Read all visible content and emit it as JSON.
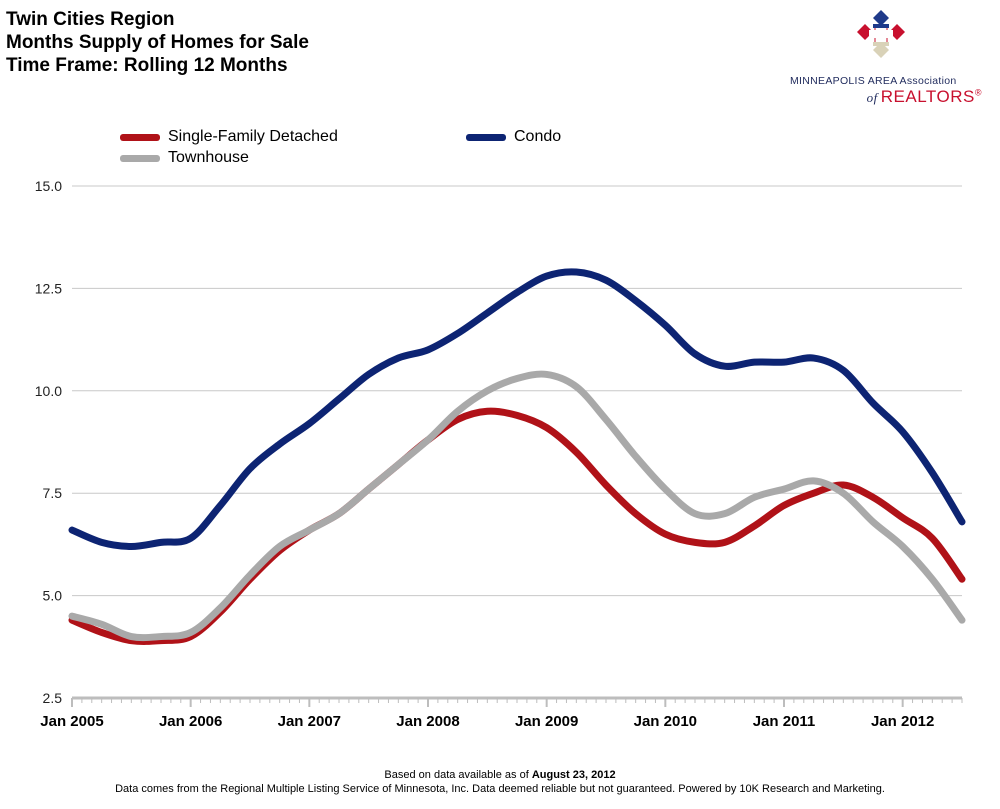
{
  "header": {
    "title_lines": [
      "Twin Cities Region",
      "Months Supply of Homes for Sale",
      "Time Frame: Rolling 12 Months"
    ]
  },
  "logo": {
    "line1": "MINNEAPOLIS AREA Association",
    "line2_prefix": "of",
    "line2": "REALTORS",
    "registered": "®",
    "icon": "mls-logo-icon",
    "colors": {
      "red": "#c8102e",
      "navy": "#1f3a8a",
      "cream": "#d9d2b8"
    }
  },
  "footer": {
    "line1_prefix": "Based on data available as of",
    "line1_date": "August 23, 2012",
    "line2": "Data comes from the Regional Multiple Listing Service of Minnesota, Inc. Data deemed reliable but not guaranteed. Powered by 10K Research and Marketing."
  },
  "chart_data": {
    "type": "line",
    "title": "Months Supply of Homes for Sale",
    "xlabel": "",
    "ylabel": "",
    "ylim": [
      2.5,
      15.0
    ],
    "y_ticks": [
      "2.5",
      "5.0",
      "7.5",
      "10.0",
      "12.5",
      "15.0"
    ],
    "x_tick_labels": [
      "Jan 2005",
      "Jan 2006",
      "Jan 2007",
      "Jan 2008",
      "Jan 2009",
      "Jan 2010",
      "Jan 2011",
      "Jan 2012"
    ],
    "x_range": [
      "2005-01",
      "2012-07"
    ],
    "grid": "horizontal",
    "legend_position": "top",
    "x": [
      "2005-01",
      "2005-04",
      "2005-07",
      "2005-10",
      "2006-01",
      "2006-04",
      "2006-07",
      "2006-10",
      "2007-01",
      "2007-04",
      "2007-07",
      "2007-10",
      "2008-01",
      "2008-04",
      "2008-07",
      "2008-10",
      "2009-01",
      "2009-04",
      "2009-07",
      "2009-10",
      "2010-01",
      "2010-04",
      "2010-07",
      "2010-10",
      "2011-01",
      "2011-04",
      "2011-07",
      "2011-10",
      "2012-01",
      "2012-04",
      "2012-07"
    ],
    "series": [
      {
        "name": "Single-Family Detached",
        "color": "#b01218",
        "values": [
          4.4,
          4.1,
          3.9,
          3.9,
          4.0,
          4.6,
          5.4,
          6.1,
          6.6,
          7.0,
          7.6,
          8.2,
          8.8,
          9.3,
          9.5,
          9.4,
          9.1,
          8.5,
          7.7,
          7.0,
          6.5,
          6.3,
          6.3,
          6.7,
          7.2,
          7.5,
          7.7,
          7.4,
          6.9,
          6.4,
          5.4
        ]
      },
      {
        "name": "Condo",
        "color": "#0d2473",
        "values": [
          6.6,
          6.3,
          6.2,
          6.3,
          6.4,
          7.2,
          8.1,
          8.7,
          9.2,
          9.8,
          10.4,
          10.8,
          11.0,
          11.4,
          11.9,
          12.4,
          12.8,
          12.9,
          12.7,
          12.2,
          11.6,
          10.9,
          10.6,
          10.7,
          10.7,
          10.8,
          10.5,
          9.7,
          9.0,
          8.0,
          6.8
        ]
      },
      {
        "name": "Townhouse",
        "color": "#a9a9a9",
        "values": [
          4.5,
          4.3,
          4.0,
          4.0,
          4.1,
          4.7,
          5.5,
          6.2,
          6.6,
          7.0,
          7.6,
          8.2,
          8.8,
          9.5,
          10.0,
          10.3,
          10.4,
          10.1,
          9.3,
          8.4,
          7.6,
          7.0,
          7.0,
          7.4,
          7.6,
          7.8,
          7.5,
          6.8,
          6.2,
          5.4,
          4.4
        ]
      }
    ]
  }
}
